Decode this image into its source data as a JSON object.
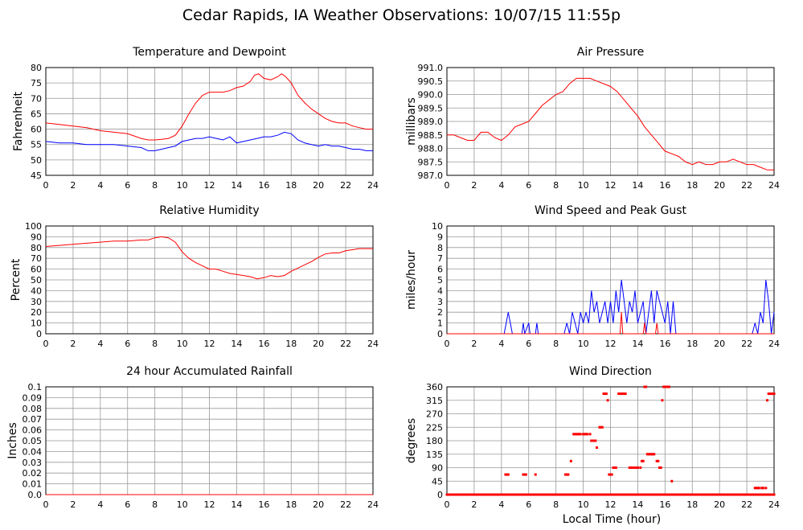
{
  "title": "Cedar Rapids, IA Weather Observations: 10/07/15 11:55p",
  "xlabel": "Local Time (hour)",
  "colors": {
    "primary": "#ff0000",
    "secondary": "#0000ff",
    "grid": "#999999"
  },
  "chart_data": [
    {
      "id": "temp",
      "type": "line",
      "title": "Temperature and Dewpoint",
      "ylabel": "Fahrenheit",
      "xlim": [
        0,
        24
      ],
      "ylim": [
        45,
        80
      ],
      "yticks": [
        45,
        50,
        55,
        60,
        65,
        70,
        75,
        80
      ],
      "ytick_labels": [
        "45",
        "50",
        "55",
        "60",
        "65",
        "70",
        "75",
        "80"
      ],
      "xticks": [
        0,
        2,
        4,
        6,
        8,
        10,
        12,
        14,
        16,
        18,
        20,
        22,
        24
      ],
      "grid": true,
      "series": [
        {
          "color": "#ff0000",
          "x": [
            0,
            1,
            2,
            3,
            4,
            5,
            6,
            7,
            7.5,
            8,
            8.5,
            9,
            9.5,
            10,
            10.5,
            11,
            11.5,
            12,
            12.5,
            13,
            13.5,
            14,
            14.5,
            15,
            15.3,
            15.6,
            16,
            16.5,
            17,
            17.3,
            17.6,
            18,
            18.5,
            19,
            19.5,
            20,
            20.5,
            21,
            21.5,
            22,
            22.5,
            23,
            23.5,
            24
          ],
          "y": [
            62,
            61.5,
            61,
            60.5,
            59.5,
            59,
            58.5,
            57,
            56.5,
            56.5,
            56.7,
            57,
            58,
            61,
            65,
            68.5,
            71,
            72,
            72,
            72,
            72.5,
            73.5,
            74,
            75.5,
            77.5,
            78,
            76.5,
            76,
            77,
            78,
            77,
            75,
            71,
            68.5,
            66.5,
            65,
            63.5,
            62.5,
            62,
            62,
            61,
            60.5,
            60,
            60
          ]
        },
        {
          "color": "#0000ff",
          "x": [
            0,
            1,
            2,
            3,
            4,
            5,
            6,
            7,
            7.5,
            8,
            8.5,
            9,
            9.5,
            10,
            10.5,
            11,
            11.5,
            12,
            12.5,
            13,
            13.5,
            14,
            14.5,
            15,
            15.5,
            16,
            16.5,
            17,
            17.5,
            18,
            18.5,
            19,
            19.5,
            20,
            20.5,
            21,
            21.5,
            22,
            22.5,
            23,
            23.5,
            24
          ],
          "y": [
            56,
            55.5,
            55.5,
            55,
            55,
            55,
            54.5,
            54,
            53,
            53,
            53.5,
            54,
            54.5,
            56,
            56.5,
            57,
            57,
            57.5,
            57,
            56.5,
            57.5,
            55.5,
            56,
            56.5,
            57,
            57.5,
            57.5,
            58,
            59,
            58.5,
            56.5,
            55.5,
            55,
            54.5,
            55,
            54.5,
            54.5,
            54,
            53.5,
            53.5,
            53,
            53
          ]
        }
      ]
    },
    {
      "id": "pressure",
      "type": "line",
      "title": "Air Pressure",
      "ylabel": "millibars",
      "xlim": [
        0,
        24
      ],
      "ylim": [
        987.0,
        991.0
      ],
      "yticks": [
        987.0,
        987.5,
        988.0,
        988.5,
        989.0,
        989.5,
        990.0,
        990.5,
        991.0
      ],
      "ytick_labels": [
        "987.0",
        "987.5",
        "988.0",
        "988.5",
        "989.0",
        "989.5",
        "990.0",
        "990.5",
        "991.0"
      ],
      "xticks": [
        0,
        2,
        4,
        6,
        8,
        10,
        12,
        14,
        16,
        18,
        20,
        22,
        24
      ],
      "grid": true,
      "series": [
        {
          "color": "#ff0000",
          "x": [
            0,
            0.5,
            1,
            1.5,
            2,
            2.5,
            3,
            3.5,
            4,
            4.5,
            5,
            5.5,
            6,
            6.5,
            7,
            7.5,
            8,
            8.5,
            9,
            9.5,
            10,
            10.5,
            11,
            11.5,
            12,
            12.5,
            13,
            13.5,
            14,
            14.5,
            15,
            15.5,
            16,
            16.5,
            17,
            17.5,
            18,
            18.5,
            19,
            19.5,
            20,
            20.5,
            21,
            21.5,
            22,
            22.5,
            23,
            23.5,
            24
          ],
          "y": [
            988.5,
            988.5,
            988.4,
            988.3,
            988.3,
            988.6,
            988.6,
            988.4,
            988.3,
            988.5,
            988.8,
            988.9,
            989.0,
            989.3,
            989.6,
            989.8,
            990.0,
            990.1,
            990.4,
            990.6,
            990.6,
            990.6,
            990.5,
            990.4,
            990.3,
            990.1,
            989.8,
            989.5,
            989.2,
            988.8,
            988.5,
            988.2,
            987.9,
            987.8,
            987.7,
            987.5,
            987.4,
            987.5,
            987.4,
            987.4,
            987.5,
            987.5,
            987.6,
            987.5,
            987.4,
            987.4,
            987.3,
            987.2,
            987.2
          ]
        }
      ]
    },
    {
      "id": "humidity",
      "type": "line",
      "title": "Relative Humidity",
      "ylabel": "Percent",
      "xlim": [
        0,
        24
      ],
      "ylim": [
        0,
        100
      ],
      "yticks": [
        0,
        10,
        20,
        30,
        40,
        50,
        60,
        70,
        80,
        90,
        100
      ],
      "ytick_labels": [
        "0",
        "10",
        "20",
        "30",
        "40",
        "50",
        "60",
        "70",
        "80",
        "90",
        "100"
      ],
      "xticks": [
        0,
        2,
        4,
        6,
        8,
        10,
        12,
        14,
        16,
        18,
        20,
        22,
        24
      ],
      "grid": true,
      "series": [
        {
          "color": "#ff0000",
          "x": [
            0,
            1,
            2,
            3,
            4,
            5,
            6,
            7,
            7.5,
            8,
            8.5,
            9,
            9.5,
            10,
            10.5,
            11,
            11.5,
            12,
            12.5,
            13,
            13.5,
            14,
            14.5,
            15,
            15.5,
            16,
            16.5,
            17,
            17.5,
            18,
            18.5,
            19,
            19.5,
            20,
            20.5,
            21,
            21.5,
            22,
            22.5,
            23,
            23.5,
            24
          ],
          "y": [
            81,
            82,
            83,
            84,
            85,
            86,
            86,
            87,
            87,
            89,
            90,
            89,
            85,
            76,
            70,
            66,
            63,
            60,
            60,
            58,
            56,
            55,
            54,
            53,
            51,
            52,
            54,
            53,
            54,
            58,
            61,
            64,
            67,
            71,
            74,
            75,
            75,
            77,
            78,
            79,
            79,
            79
          ]
        }
      ]
    },
    {
      "id": "wind",
      "type": "line",
      "title": "Wind Speed and Peak Gust",
      "ylabel": "miles/hour",
      "xlim": [
        0,
        24
      ],
      "ylim": [
        0,
        10
      ],
      "yticks": [
        0,
        1,
        2,
        3,
        4,
        5,
        6,
        7,
        8,
        9,
        10
      ],
      "ytick_labels": [
        "0",
        "1",
        "2",
        "3",
        "4",
        "5",
        "6",
        "7",
        "8",
        "9",
        "10"
      ],
      "xticks": [
        0,
        2,
        4,
        6,
        8,
        10,
        12,
        14,
        16,
        18,
        20,
        22,
        24
      ],
      "grid": true,
      "series": [
        {
          "color": "#0000ff",
          "x": [
            0,
            4.2,
            4.35,
            4.5,
            4.65,
            4.8,
            5.5,
            5.6,
            5.7,
            6.0,
            6.1,
            6.5,
            6.6,
            6.7,
            8.6,
            8.8,
            9.0,
            9.2,
            9.4,
            9.6,
            9.8,
            10.0,
            10.2,
            10.4,
            10.6,
            10.8,
            11.0,
            11.2,
            11.4,
            11.6,
            11.8,
            12.0,
            12.2,
            12.4,
            12.6,
            12.8,
            13.0,
            13.2,
            13.4,
            13.6,
            13.8,
            14.0,
            14.2,
            14.4,
            14.6,
            14.8,
            15.0,
            15.2,
            15.4,
            15.6,
            15.8,
            16.0,
            16.2,
            16.4,
            16.6,
            16.8,
            22.4,
            22.6,
            22.8,
            23.0,
            23.2,
            23.4,
            23.6,
            23.8,
            24
          ],
          "y": [
            0,
            0,
            1,
            2,
            1,
            0,
            0,
            1,
            0,
            1,
            0,
            0,
            1,
            0,
            0,
            1,
            0,
            2,
            1,
            0,
            2,
            1,
            2,
            1,
            4,
            2,
            3,
            1,
            2,
            3,
            1,
            3,
            1,
            4,
            2,
            5,
            3,
            1,
            3,
            2,
            4,
            1,
            2,
            3,
            0,
            2,
            4,
            1,
            4,
            3,
            2,
            1,
            3,
            0,
            3,
            0,
            0,
            1,
            0,
            2,
            1,
            5,
            3,
            0,
            2
          ]
        },
        {
          "color": "#ff0000",
          "x": [
            0,
            12.7,
            12.8,
            12.9,
            14.4,
            14.5,
            14.6,
            15.3,
            15.4,
            15.5,
            24
          ],
          "y": [
            0,
            0,
            2,
            0,
            0,
            1,
            0,
            0,
            1,
            0,
            0
          ]
        }
      ]
    },
    {
      "id": "rain",
      "type": "line",
      "title": "24 hour Accumulated Rainfall",
      "ylabel": "Inches",
      "xlim": [
        0,
        24
      ],
      "ylim": [
        0,
        0.1
      ],
      "yticks": [
        0,
        0.01,
        0.02,
        0.03,
        0.04,
        0.05,
        0.06,
        0.07,
        0.08,
        0.09,
        0.1
      ],
      "ytick_labels": [
        "0.0",
        "0.01",
        "0.02",
        "0.03",
        "0.04",
        "0.05",
        "0.06",
        "0.07",
        "0.08",
        "0.09",
        "0.1"
      ],
      "xticks": [
        0,
        2,
        4,
        6,
        8,
        10,
        12,
        14,
        16,
        18,
        20,
        22,
        24
      ],
      "grid": true,
      "series": [
        {
          "color": "#ff0000",
          "x": [
            0,
            24
          ],
          "y": [
            0,
            0
          ]
        }
      ]
    },
    {
      "id": "winddir",
      "type": "scatter",
      "title": "Wind Direction",
      "ylabel": "degrees",
      "xlim": [
        0,
        24
      ],
      "ylim": [
        0,
        360
      ],
      "yticks": [
        0,
        45,
        90,
        135,
        180,
        225,
        270,
        315,
        360
      ],
      "ytick_labels": [
        "0",
        "45",
        "90",
        "135",
        "180",
        "225",
        "270",
        "315",
        "360"
      ],
      "xticks": [
        0,
        2,
        4,
        6,
        8,
        10,
        12,
        14,
        16,
        18,
        20,
        22,
        24
      ],
      "grid": true,
      "series": [
        {
          "color": "#ff0000",
          "x": [
            4.3,
            4.4,
            4.5,
            5.6,
            5.7,
            5.8,
            6.5,
            8.7,
            8.8,
            8.9,
            9.1,
            9.3,
            9.4,
            9.5,
            9.6,
            9.7,
            9.8,
            10.0,
            10.1,
            10.2,
            10.3,
            10.5,
            10.6,
            10.7,
            10.8,
            10.9,
            11.0,
            11.2,
            11.3,
            11.4,
            11.5,
            11.6,
            11.7,
            11.8,
            11.9,
            12.0,
            12.1,
            12.2,
            12.3,
            12.4,
            12.6,
            12.7,
            12.8,
            12.9,
            13.0,
            13.1,
            13.4,
            13.5,
            13.6,
            13.7,
            13.8,
            13.9,
            14.0,
            14.2,
            14.3,
            14.4,
            14.5,
            14.6,
            14.7,
            14.8,
            14.9,
            15.0,
            15.1,
            15.2,
            15.4,
            15.5,
            15.6,
            15.7,
            15.8,
            15.9,
            16.0,
            16.1,
            16.2,
            16.3,
            16.5,
            22.6,
            22.7,
            22.8,
            22.9,
            23.1,
            23.2,
            23.4,
            23.5,
            23.6,
            23.7,
            23.8,
            23.9,
            24.0
          ],
          "y": [
            67,
            67,
            67,
            67,
            67,
            67,
            67,
            67,
            67,
            67,
            112,
            202,
            202,
            202,
            202,
            202,
            202,
            202,
            202,
            202,
            202,
            202,
            180,
            180,
            180,
            180,
            157,
            225,
            225,
            225,
            337,
            337,
            337,
            315,
            67,
            67,
            67,
            90,
            90,
            90,
            337,
            337,
            337,
            337,
            337,
            337,
            90,
            90,
            90,
            90,
            90,
            90,
            90,
            90,
            112,
            112,
            360,
            360,
            135,
            135,
            135,
            135,
            135,
            135,
            112,
            112,
            90,
            90,
            315,
            360,
            360,
            360,
            360,
            360,
            45,
            22,
            22,
            22,
            22,
            22,
            22,
            22,
            315,
            337,
            337,
            337,
            337,
            337
          ]
        },
        {
          "color": "#ff0000",
          "x_range": [
            0,
            24
          ],
          "y": 0,
          "step": 0.1
        }
      ]
    }
  ]
}
